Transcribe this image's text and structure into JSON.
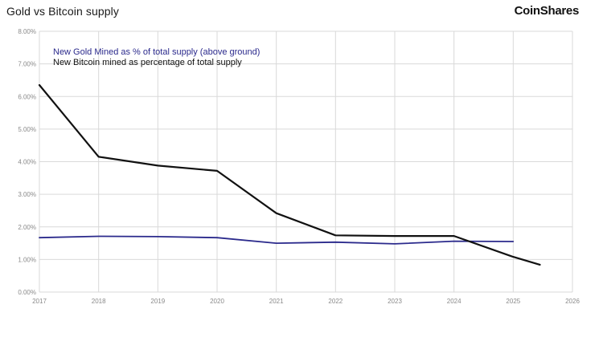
{
  "header": {
    "title": "Gold vs Bitcoin supply",
    "brand": "CoinShares"
  },
  "colors": {
    "gold_series": "#2b2a8c",
    "bitcoin_series": "#111111",
    "grid": "#d9d9d9",
    "tick_text": "#8a8a8a"
  },
  "chart_data": {
    "type": "line",
    "title": "Gold vs Bitcoin supply",
    "xlabel": "",
    "ylabel": "",
    "xlim": [
      2017,
      2026
    ],
    "ylim": [
      0,
      8
    ],
    "x_ticks": [
      "2017",
      "2018",
      "2019",
      "2020",
      "2021",
      "2022",
      "2023",
      "2024",
      "2025",
      "2026"
    ],
    "y_ticks": [
      "0.00%",
      "1.00%",
      "2.00%",
      "3.00%",
      "4.00%",
      "5.00%",
      "6.00%",
      "7.00%",
      "8.00%"
    ],
    "grid": true,
    "legend_position": "top-left",
    "series": [
      {
        "name": "New Gold Mined as % of total supply (above ground)",
        "color": "#2b2a8c",
        "x": [
          2017,
          2018,
          2019,
          2020,
          2021,
          2022,
          2023,
          2024,
          2025
        ],
        "y": [
          1.67,
          1.71,
          1.7,
          1.67,
          1.5,
          1.53,
          1.48,
          1.56,
          1.55
        ]
      },
      {
        "name": "New Bitcoin mined as percentage of total supply",
        "color": "#111111",
        "x": [
          2017,
          2018,
          2019,
          2020,
          2021,
          2022,
          2023,
          2024,
          2025,
          2025.45
        ],
        "y": [
          6.35,
          4.15,
          3.88,
          3.72,
          2.42,
          1.74,
          1.72,
          1.72,
          1.08,
          0.84
        ]
      }
    ]
  }
}
